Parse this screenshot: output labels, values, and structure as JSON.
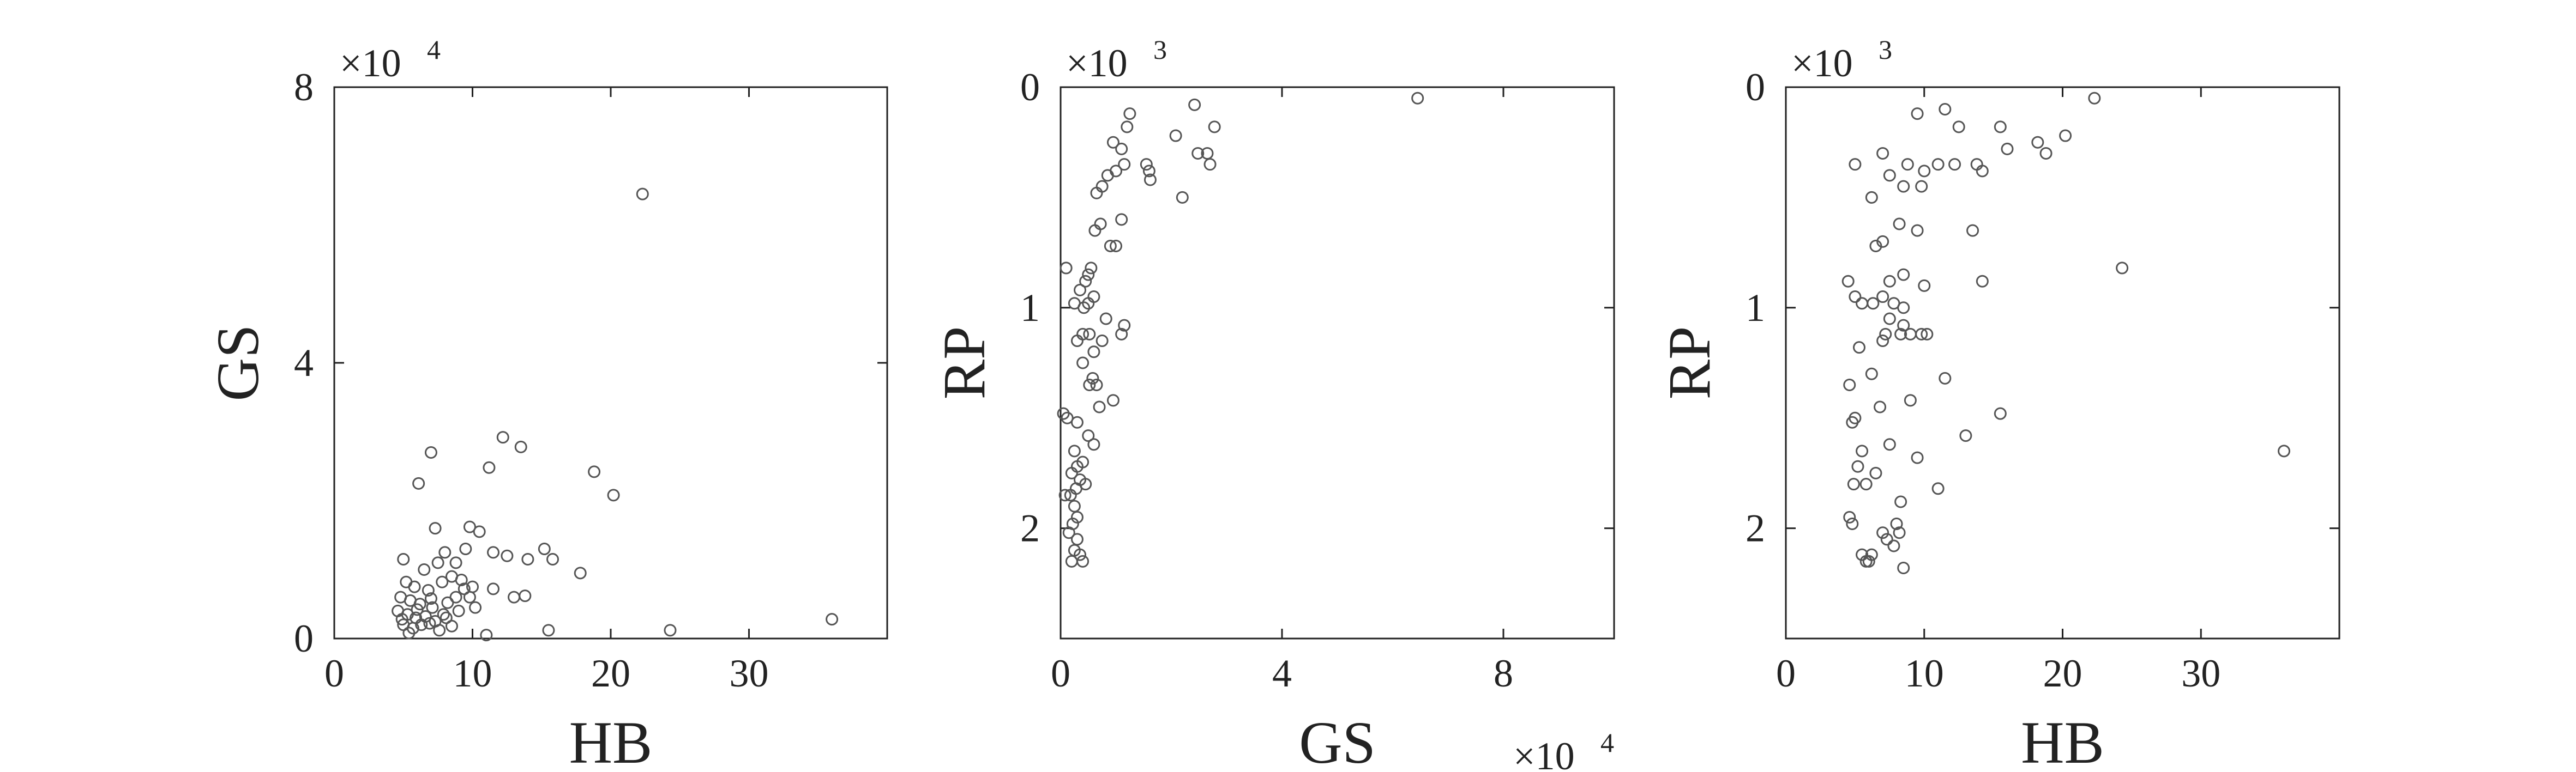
{
  "chart_data": [
    {
      "type": "scatter",
      "xlabel": "HB",
      "ylabel": "GS",
      "xlim": [
        0,
        40
      ],
      "ylim": [
        0,
        8
      ],
      "x_ticks": [
        0,
        10,
        20,
        30
      ],
      "y_ticks": [
        0,
        4,
        8
      ],
      "y_multiplier_base": "×10",
      "y_multiplier_exp": "4",
      "x_multiplier_base": "",
      "x_multiplier_exp": "",
      "y_reversed": false,
      "grid": false,
      "points": [
        [
          22.3,
          6.45
        ],
        [
          36.0,
          0.28
        ],
        [
          24.3,
          0.12
        ],
        [
          15.5,
          0.12
        ],
        [
          11.0,
          0.05
        ],
        [
          7.0,
          2.7
        ],
        [
          12.2,
          2.92
        ],
        [
          13.5,
          2.78
        ],
        [
          18.8,
          2.42
        ],
        [
          11.2,
          2.48
        ],
        [
          20.2,
          2.08
        ],
        [
          6.1,
          2.25
        ],
        [
          7.3,
          1.6
        ],
        [
          9.8,
          1.62
        ],
        [
          10.5,
          1.55
        ],
        [
          5.0,
          1.15
        ],
        [
          6.5,
          1.0
        ],
        [
          7.5,
          1.1
        ],
        [
          8.0,
          1.25
        ],
        [
          8.8,
          1.1
        ],
        [
          9.5,
          1.3
        ],
        [
          11.5,
          1.25
        ],
        [
          12.5,
          1.2
        ],
        [
          14.0,
          1.15
        ],
        [
          15.2,
          1.3
        ],
        [
          15.8,
          1.15
        ],
        [
          17.8,
          0.95
        ],
        [
          5.2,
          0.82
        ],
        [
          5.8,
          0.75
        ],
        [
          6.8,
          0.7
        ],
        [
          7.8,
          0.82
        ],
        [
          8.5,
          0.9
        ],
        [
          9.2,
          0.85
        ],
        [
          10.0,
          0.75
        ],
        [
          11.5,
          0.72
        ],
        [
          13.0,
          0.6
        ],
        [
          13.8,
          0.62
        ],
        [
          4.8,
          0.6
        ],
        [
          5.5,
          0.55
        ],
        [
          6.2,
          0.5
        ],
        [
          7.0,
          0.58
        ],
        [
          8.2,
          0.52
        ],
        [
          9.8,
          0.6
        ],
        [
          10.2,
          0.45
        ],
        [
          4.6,
          0.4
        ],
        [
          5.3,
          0.35
        ],
        [
          5.9,
          0.3
        ],
        [
          6.6,
          0.32
        ],
        [
          7.3,
          0.25
        ],
        [
          8.1,
          0.3
        ],
        [
          9.0,
          0.4
        ],
        [
          5.0,
          0.2
        ],
        [
          5.7,
          0.15
        ],
        [
          6.3,
          0.2
        ],
        [
          7.6,
          0.12
        ],
        [
          8.5,
          0.18
        ],
        [
          4.9,
          0.28
        ],
        [
          6.0,
          0.42
        ],
        [
          7.1,
          0.45
        ],
        [
          8.8,
          0.6
        ],
        [
          9.4,
          0.72
        ],
        [
          5.4,
          0.08
        ],
        [
          6.9,
          0.22
        ],
        [
          7.9,
          0.35
        ]
      ]
    },
    {
      "type": "scatter",
      "xlabel": "GS",
      "ylabel": "RP",
      "xlim": [
        0,
        10
      ],
      "ylim": [
        0,
        2.5
      ],
      "x_ticks": [
        0,
        4,
        8
      ],
      "y_ticks": [
        0,
        1,
        2
      ],
      "y_multiplier_base": "×10",
      "y_multiplier_exp": "3",
      "x_multiplier_base": "×10",
      "x_multiplier_exp": "4",
      "y_reversed": true,
      "grid": false,
      "points": [
        [
          6.45,
          0.05
        ],
        [
          2.42,
          0.08
        ],
        [
          1.25,
          0.12
        ],
        [
          2.78,
          0.18
        ],
        [
          1.2,
          0.18
        ],
        [
          2.08,
          0.22
        ],
        [
          0.95,
          0.25
        ],
        [
          1.1,
          0.28
        ],
        [
          2.48,
          0.3
        ],
        [
          2.65,
          0.3
        ],
        [
          2.7,
          0.35
        ],
        [
          1.55,
          0.35
        ],
        [
          1.15,
          0.35
        ],
        [
          1.0,
          0.38
        ],
        [
          0.85,
          0.4
        ],
        [
          1.6,
          0.38
        ],
        [
          1.62,
          0.42
        ],
        [
          0.75,
          0.45
        ],
        [
          0.65,
          0.48
        ],
        [
          2.2,
          0.5
        ],
        [
          1.1,
          0.6
        ],
        [
          0.72,
          0.62
        ],
        [
          0.62,
          0.65
        ],
        [
          0.9,
          0.72
        ],
        [
          1.0,
          0.72
        ],
        [
          0.55,
          0.82
        ],
        [
          0.1,
          0.82
        ],
        [
          0.5,
          0.85
        ],
        [
          0.45,
          0.88
        ],
        [
          0.35,
          0.92
        ],
        [
          0.6,
          0.95
        ],
        [
          0.5,
          0.98
        ],
        [
          0.25,
          0.98
        ],
        [
          0.42,
          1.0
        ],
        [
          0.82,
          1.05
        ],
        [
          1.15,
          1.08
        ],
        [
          1.1,
          1.12
        ],
        [
          0.4,
          1.12
        ],
        [
          0.52,
          1.12
        ],
        [
          0.3,
          1.15
        ],
        [
          0.75,
          1.15
        ],
        [
          0.6,
          1.2
        ],
        [
          0.4,
          1.25
        ],
        [
          0.58,
          1.32
        ],
        [
          0.52,
          1.35
        ],
        [
          0.65,
          1.35
        ],
        [
          0.95,
          1.42
        ],
        [
          0.7,
          1.45
        ],
        [
          0.05,
          1.48
        ],
        [
          0.12,
          1.5
        ],
        [
          0.3,
          1.52
        ],
        [
          0.5,
          1.58
        ],
        [
          0.6,
          1.62
        ],
        [
          0.25,
          1.65
        ],
        [
          0.4,
          1.7
        ],
        [
          0.3,
          1.72
        ],
        [
          0.2,
          1.75
        ],
        [
          0.35,
          1.78
        ],
        [
          0.45,
          1.8
        ],
        [
          0.28,
          1.82
        ],
        [
          0.18,
          1.85
        ],
        [
          0.08,
          1.85
        ],
        [
          0.25,
          1.9
        ],
        [
          0.3,
          1.95
        ],
        [
          0.22,
          1.98
        ],
        [
          0.15,
          2.02
        ],
        [
          0.3,
          2.05
        ],
        [
          0.25,
          2.1
        ],
        [
          0.35,
          2.12
        ],
        [
          0.2,
          2.15
        ],
        [
          0.4,
          2.15
        ]
      ]
    },
    {
      "type": "scatter",
      "xlabel": "HB",
      "ylabel": "RP",
      "xlim": [
        0,
        40
      ],
      "ylim": [
        0,
        2.5
      ],
      "x_ticks": [
        0,
        10,
        20,
        30
      ],
      "y_ticks": [
        0,
        1,
        2
      ],
      "y_multiplier_base": "×10",
      "y_multiplier_exp": "3",
      "x_multiplier_base": "",
      "x_multiplier_exp": "",
      "y_reversed": true,
      "grid": false,
      "points": [
        [
          22.3,
          0.05
        ],
        [
          11.5,
          0.1
        ],
        [
          9.5,
          0.12
        ],
        [
          15.5,
          0.18
        ],
        [
          20.2,
          0.22
        ],
        [
          12.5,
          0.18
        ],
        [
          18.2,
          0.25
        ],
        [
          18.8,
          0.3
        ],
        [
          16.0,
          0.28
        ],
        [
          7.0,
          0.3
        ],
        [
          5.0,
          0.35
        ],
        [
          8.8,
          0.35
        ],
        [
          10.0,
          0.38
        ],
        [
          12.2,
          0.35
        ],
        [
          13.8,
          0.35
        ],
        [
          14.2,
          0.38
        ],
        [
          11.0,
          0.35
        ],
        [
          7.5,
          0.4
        ],
        [
          8.5,
          0.45
        ],
        [
          9.8,
          0.45
        ],
        [
          6.2,
          0.5
        ],
        [
          8.2,
          0.62
        ],
        [
          9.5,
          0.65
        ],
        [
          13.5,
          0.65
        ],
        [
          7.0,
          0.7
        ],
        [
          6.5,
          0.72
        ],
        [
          24.3,
          0.82
        ],
        [
          8.5,
          0.85
        ],
        [
          4.5,
          0.88
        ],
        [
          7.5,
          0.88
        ],
        [
          14.2,
          0.88
        ],
        [
          10.0,
          0.9
        ],
        [
          5.0,
          0.95
        ],
        [
          5.5,
          0.98
        ],
        [
          6.3,
          0.98
        ],
        [
          7.0,
          0.95
        ],
        [
          7.8,
          0.98
        ],
        [
          8.5,
          1.0
        ],
        [
          7.5,
          1.05
        ],
        [
          8.5,
          1.08
        ],
        [
          7.2,
          1.12
        ],
        [
          8.3,
          1.12
        ],
        [
          9.0,
          1.12
        ],
        [
          9.8,
          1.12
        ],
        [
          10.2,
          1.12
        ],
        [
          5.3,
          1.18
        ],
        [
          7.0,
          1.15
        ],
        [
          6.2,
          1.3
        ],
        [
          11.5,
          1.32
        ],
        [
          4.6,
          1.35
        ],
        [
          9.0,
          1.42
        ],
        [
          6.8,
          1.45
        ],
        [
          15.5,
          1.48
        ],
        [
          5.0,
          1.5
        ],
        [
          4.8,
          1.52
        ],
        [
          13.0,
          1.58
        ],
        [
          7.5,
          1.62
        ],
        [
          36.0,
          1.65
        ],
        [
          5.5,
          1.65
        ],
        [
          9.5,
          1.68
        ],
        [
          5.2,
          1.72
        ],
        [
          6.5,
          1.75
        ],
        [
          4.9,
          1.8
        ],
        [
          5.8,
          1.8
        ],
        [
          11.0,
          1.82
        ],
        [
          8.3,
          1.88
        ],
        [
          4.6,
          1.95
        ],
        [
          4.8,
          1.98
        ],
        [
          8.0,
          1.98
        ],
        [
          8.2,
          2.02
        ],
        [
          7.0,
          2.02
        ],
        [
          7.3,
          2.05
        ],
        [
          7.8,
          2.08
        ],
        [
          6.2,
          2.12
        ],
        [
          5.5,
          2.12
        ],
        [
          5.8,
          2.15
        ],
        [
          6.0,
          2.15
        ],
        [
          8.5,
          2.18
        ]
      ]
    }
  ]
}
